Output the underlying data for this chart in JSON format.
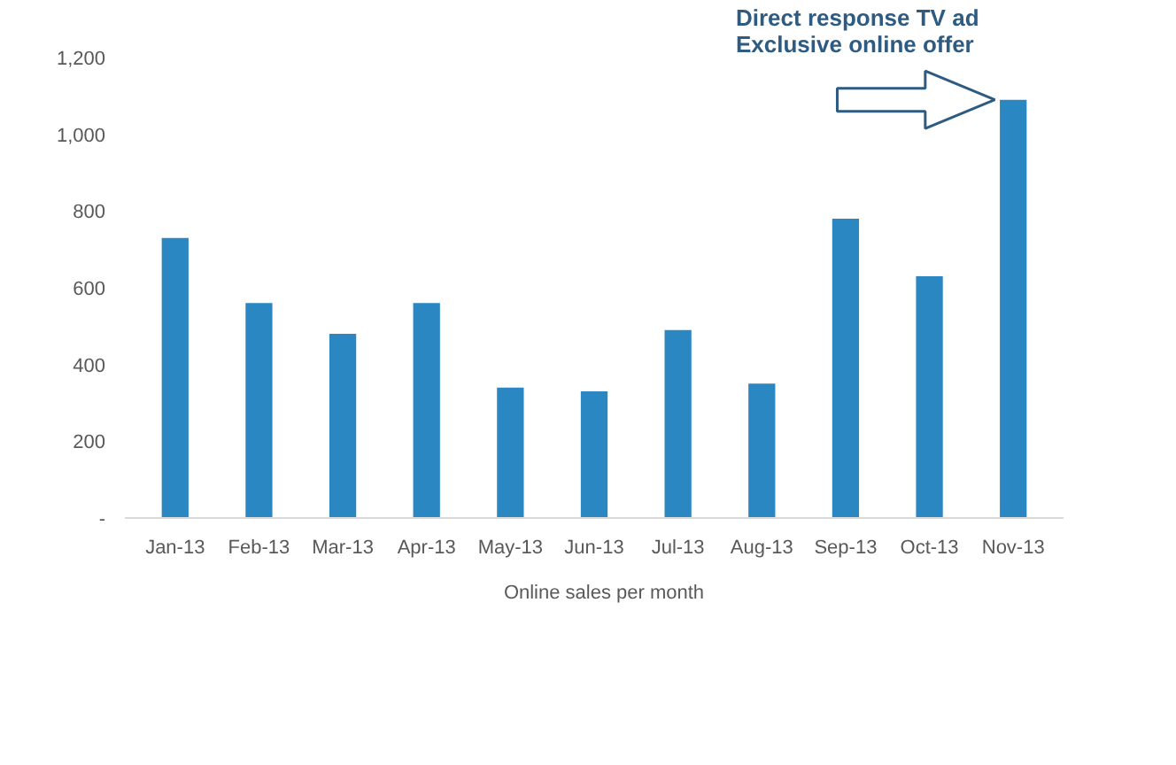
{
  "chart_data": {
    "type": "bar",
    "categories": [
      "Jan-13",
      "Feb-13",
      "Mar-13",
      "Apr-13",
      "May-13",
      "Jun-13",
      "Jul-13",
      "Aug-13",
      "Sep-13",
      "Oct-13",
      "Nov-13"
    ],
    "series": [
      {
        "name": "Online sales per month",
        "color": "#2a87c2",
        "values": [
          730,
          560,
          480,
          560,
          340,
          330,
          490,
          350,
          780,
          630,
          1090
        ]
      }
    ],
    "ylim": [
      0,
      1200
    ],
    "yticks": [
      {
        "value": 0,
        "label": "-"
      },
      200,
      400,
      600,
      800,
      {
        "value": 1000,
        "label": "1,000"
      },
      {
        "value": 1200,
        "label": "1,200"
      }
    ],
    "grid": false,
    "legend": "bottom",
    "annotations": [
      {
        "text": "Direct response TV ad\nExclusive online offer",
        "x": "Nov-13",
        "y": 1090
      }
    ]
  }
}
